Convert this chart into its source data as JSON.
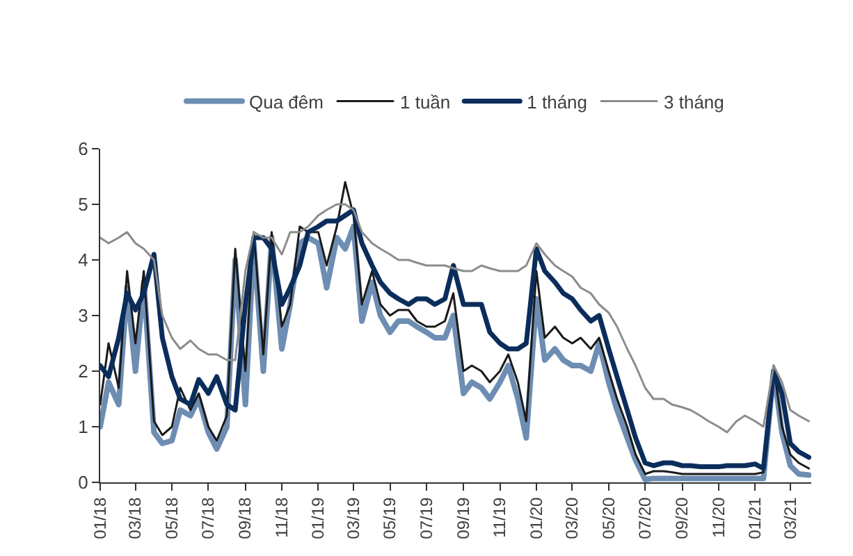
{
  "chart_data": {
    "type": "line",
    "legend": "top",
    "grid": false,
    "line_style": "solid",
    "marker": "none",
    "x": [
      "2018-01-01",
      "2018-01-15",
      "2018-02-01",
      "2018-02-15",
      "2018-03-01",
      "2018-03-15",
      "2018-04-01",
      "2018-04-15",
      "2018-05-01",
      "2018-05-15",
      "2018-06-01",
      "2018-06-15",
      "2018-07-01",
      "2018-07-15",
      "2018-08-01",
      "2018-08-15",
      "2018-09-01",
      "2018-09-15",
      "2018-10-01",
      "2018-10-15",
      "2018-11-01",
      "2018-11-15",
      "2018-12-01",
      "2018-12-15",
      "2019-01-01",
      "2019-01-15",
      "2019-02-01",
      "2019-02-15",
      "2019-03-01",
      "2019-03-15",
      "2019-04-01",
      "2019-04-15",
      "2019-05-01",
      "2019-05-15",
      "2019-06-01",
      "2019-06-15",
      "2019-07-01",
      "2019-07-15",
      "2019-08-01",
      "2019-08-15",
      "2019-09-01",
      "2019-09-15",
      "2019-10-01",
      "2019-10-15",
      "2019-11-01",
      "2019-11-15",
      "2019-12-01",
      "2019-12-15",
      "2020-01-01",
      "2020-01-15",
      "2020-02-01",
      "2020-02-15",
      "2020-03-01",
      "2020-03-15",
      "2020-04-01",
      "2020-04-15",
      "2020-05-01",
      "2020-05-15",
      "2020-06-01",
      "2020-06-15",
      "2020-07-01",
      "2020-07-15",
      "2020-08-01",
      "2020-08-15",
      "2020-09-01",
      "2020-09-15",
      "2020-10-01",
      "2020-10-15",
      "2020-11-01",
      "2020-11-15",
      "2020-12-01",
      "2020-12-15",
      "2021-01-01",
      "2021-01-15",
      "2021-02-01",
      "2021-02-15",
      "2021-03-01",
      "2021-03-15",
      "2021-04-01"
    ],
    "series": [
      {
        "name": "Qua đêm",
        "color": "#6d8db3",
        "values": [
          1.0,
          1.8,
          1.4,
          3.5,
          2.0,
          3.6,
          0.9,
          0.7,
          0.75,
          1.3,
          1.2,
          1.5,
          0.9,
          0.6,
          1.0,
          4.0,
          1.4,
          4.3,
          2.0,
          4.4,
          2.4,
          3.2,
          4.3,
          4.4,
          4.3,
          3.5,
          4.4,
          4.2,
          4.6,
          2.9,
          3.6,
          3.0,
          2.7,
          2.9,
          2.9,
          2.8,
          2.7,
          2.6,
          2.6,
          3.0,
          1.6,
          1.8,
          1.7,
          1.5,
          1.8,
          2.1,
          1.5,
          0.8,
          3.3,
          2.2,
          2.4,
          2.2,
          2.1,
          2.1,
          2.0,
          2.5,
          1.8,
          1.3,
          0.8,
          0.4,
          0.05,
          0.07,
          0.07,
          0.07,
          0.07,
          0.07,
          0.07,
          0.07,
          0.07,
          0.07,
          0.07,
          0.07,
          0.07,
          0.07,
          2.0,
          0.9,
          0.3,
          0.15,
          0.13
        ]
      },
      {
        "name": "1 tuần",
        "color": "#1a1a1a",
        "values": [
          1.4,
          2.5,
          1.7,
          3.8,
          2.5,
          3.8,
          1.1,
          0.85,
          1.0,
          1.7,
          1.3,
          1.6,
          1.0,
          0.75,
          1.2,
          4.2,
          2.0,
          4.5,
          2.3,
          4.5,
          2.8,
          3.2,
          4.6,
          4.5,
          4.5,
          3.9,
          4.6,
          5.4,
          4.8,
          3.2,
          3.8,
          3.2,
          3.0,
          3.1,
          3.1,
          2.9,
          2.8,
          2.8,
          2.9,
          3.4,
          2.0,
          2.1,
          2.0,
          1.8,
          2.0,
          2.3,
          1.8,
          1.1,
          3.8,
          2.6,
          2.8,
          2.6,
          2.5,
          2.6,
          2.4,
          2.6,
          2.0,
          1.5,
          1.0,
          0.5,
          0.15,
          0.2,
          0.2,
          0.18,
          0.15,
          0.15,
          0.15,
          0.15,
          0.15,
          0.15,
          0.15,
          0.15,
          0.15,
          0.18,
          2.1,
          1.0,
          0.5,
          0.35,
          0.25
        ]
      },
      {
        "name": "1 tháng",
        "color": "#0b2d5b",
        "values": [
          2.1,
          1.9,
          2.6,
          3.4,
          3.1,
          3.4,
          4.1,
          2.6,
          1.9,
          1.5,
          1.4,
          1.85,
          1.6,
          1.9,
          1.4,
          1.3,
          3.2,
          4.4,
          4.4,
          4.2,
          3.2,
          3.5,
          3.9,
          4.5,
          4.6,
          4.7,
          4.7,
          4.8,
          4.9,
          4.3,
          3.9,
          3.6,
          3.4,
          3.3,
          3.2,
          3.3,
          3.3,
          3.2,
          3.3,
          3.9,
          3.2,
          3.2,
          3.2,
          2.7,
          2.5,
          2.4,
          2.4,
          2.5,
          4.2,
          3.8,
          3.6,
          3.4,
          3.3,
          3.1,
          2.9,
          3.0,
          2.4,
          1.9,
          1.3,
          0.8,
          0.35,
          0.3,
          0.35,
          0.35,
          0.3,
          0.3,
          0.28,
          0.28,
          0.28,
          0.3,
          0.3,
          0.3,
          0.33,
          0.25,
          2.0,
          1.6,
          0.7,
          0.55,
          0.45
        ]
      },
      {
        "name": "3 tháng",
        "color": "#8c8c8c",
        "values": [
          4.4,
          4.3,
          4.4,
          4.5,
          4.3,
          4.2,
          4.0,
          3.0,
          2.6,
          2.4,
          2.55,
          2.4,
          2.3,
          2.3,
          2.2,
          2.2,
          3.8,
          4.5,
          4.4,
          4.4,
          4.1,
          4.5,
          4.5,
          4.6,
          4.8,
          4.9,
          5.0,
          5.0,
          4.9,
          4.5,
          4.3,
          4.2,
          4.1,
          4.0,
          4.0,
          3.95,
          3.9,
          3.9,
          3.9,
          3.85,
          3.8,
          3.8,
          3.9,
          3.85,
          3.8,
          3.8,
          3.8,
          3.9,
          4.3,
          4.1,
          3.9,
          3.8,
          3.7,
          3.5,
          3.4,
          3.2,
          3.05,
          2.8,
          2.4,
          2.1,
          1.7,
          1.5,
          1.5,
          1.4,
          1.35,
          1.3,
          1.2,
          1.1,
          1.0,
          0.9,
          1.1,
          1.2,
          1.1,
          1.0,
          2.1,
          1.8,
          1.3,
          1.2,
          1.1
        ]
      }
    ],
    "xlim": [
      "2018-01-01",
      "2021-04-05"
    ],
    "xticks": [
      {
        "value": "2018-01-01",
        "label": "01/18"
      },
      {
        "value": "2018-03-01",
        "label": "03/18"
      },
      {
        "value": "2018-05-01",
        "label": "05/18"
      },
      {
        "value": "2018-07-01",
        "label": "07/18"
      },
      {
        "value": "2018-09-01",
        "label": "09/18"
      },
      {
        "value": "2018-11-01",
        "label": "11/18"
      },
      {
        "value": "2019-01-01",
        "label": "01/19"
      },
      {
        "value": "2019-03-01",
        "label": "03/19"
      },
      {
        "value": "2019-05-01",
        "label": "05/19"
      },
      {
        "value": "2019-07-01",
        "label": "07/19"
      },
      {
        "value": "2019-09-01",
        "label": "09/19"
      },
      {
        "value": "2019-11-01",
        "label": "11/19"
      },
      {
        "value": "2020-01-01",
        "label": "01/20"
      },
      {
        "value": "2020-03-01",
        "label": "03/20"
      },
      {
        "value": "2020-05-01",
        "label": "05/20"
      },
      {
        "value": "2020-07-01",
        "label": "07/20"
      },
      {
        "value": "2020-09-01",
        "label": "09/20"
      },
      {
        "value": "2020-11-01",
        "label": "11/20"
      },
      {
        "value": "2021-01-01",
        "label": "01/21"
      },
      {
        "value": "2021-03-01",
        "label": "03/21"
      }
    ],
    "ylim": [
      0,
      6
    ],
    "yticks": [
      0,
      1,
      2,
      3,
      4,
      5,
      6
    ]
  }
}
